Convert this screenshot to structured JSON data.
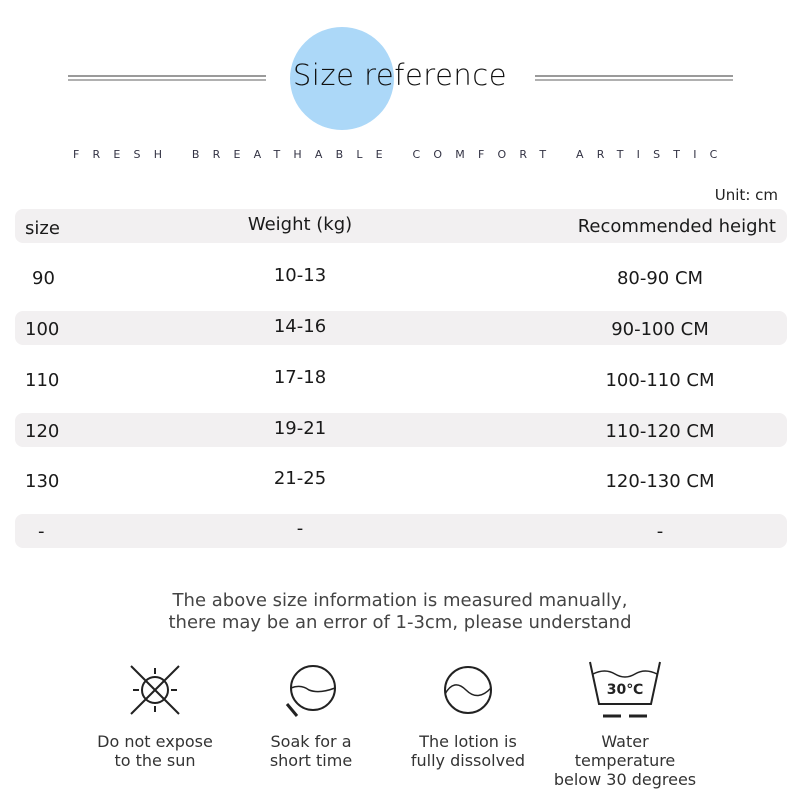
{
  "header": {
    "title": "Size reference",
    "tagline": "FRESH BREATHABLE COMFORT ARTISTIC",
    "accent_color": "#acd8f8"
  },
  "unit": "Unit: cm",
  "table": {
    "headers": [
      "size",
      "Weight (kg)",
      "Recommended height"
    ],
    "rows": [
      [
        "90",
        "10-13",
        "80-90 CM"
      ],
      [
        "100",
        "14-16",
        "90-100 CM"
      ],
      [
        "110",
        "17-18",
        "100-110 CM"
      ],
      [
        "120",
        "19-21",
        "110-120 CM"
      ],
      [
        "130",
        "21-25",
        "120-130 CM"
      ],
      [
        "-",
        "-",
        "-"
      ]
    ]
  },
  "note": [
    "The above size information is measured manually,",
    "there may be an error of 1-3cm, please understand"
  ],
  "care": [
    {
      "icon": "no-sun-icon",
      "line1": "Do not expose",
      "line2": "to the sun"
    },
    {
      "icon": "soak-icon",
      "line1": "Soak for a",
      "line2": "short time"
    },
    {
      "icon": "dissolve-icon",
      "line1": "The lotion is",
      "line2": "fully dissolved"
    },
    {
      "icon": "wash-30-icon",
      "line1": "Water temperature",
      "line2": "below 30 degrees",
      "temp": "30℃"
    }
  ]
}
